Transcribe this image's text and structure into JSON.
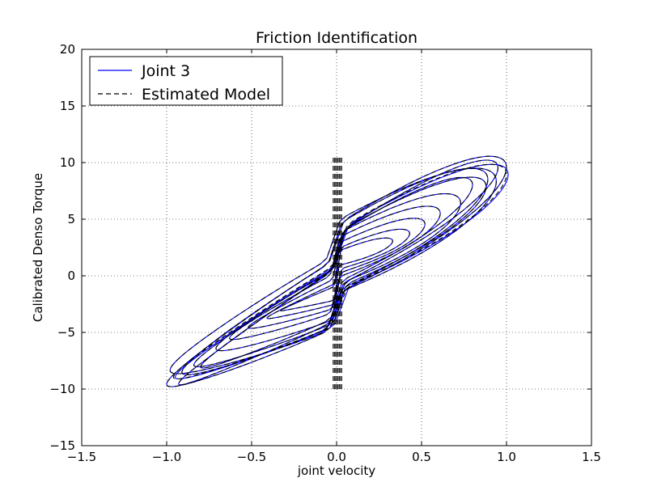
{
  "chart_data": {
    "type": "line",
    "title": "Friction Identification",
    "xlabel": "joint velocity",
    "ylabel": "Calibrated Denso Torque",
    "xlim": [
      -1.5,
      1.5
    ],
    "ylim": [
      -15,
      20
    ],
    "xticks": [
      -1.5,
      -1.0,
      -0.5,
      0.0,
      0.5,
      1.0,
      1.5
    ],
    "xtick_labels": [
      "−1.5",
      "−1.0",
      "−0.5",
      "0.0",
      "0.5",
      "1.0",
      "1.5"
    ],
    "yticks": [
      -15,
      -10,
      -5,
      0,
      5,
      10,
      15,
      20
    ],
    "ytick_labels": [
      "−15",
      "−10",
      "−5",
      "0",
      "5",
      "10",
      "15",
      "20"
    ],
    "grid": true,
    "legend_position": "top-left",
    "series": [
      {
        "name": "Joint 3",
        "style": "solid",
        "color": "#0000ff",
        "loops": [
          {
            "h": 0.22,
            "a": 8.5,
            "b": 5.5,
            "xshift": 0.0,
            "s": 1.0
          },
          {
            "h": 0.24,
            "a": 8.0,
            "b": 5.0,
            "xshift": 0.03,
            "s": 0.98
          },
          {
            "h": 0.2,
            "a": 7.5,
            "b": 6.0,
            "xshift": -0.02,
            "s": 0.96
          },
          {
            "h": 0.26,
            "a": 9.0,
            "b": 4.5,
            "xshift": 0.01,
            "s": 0.94
          },
          {
            "h": 0.18,
            "a": 8.2,
            "b": 5.8,
            "xshift": -0.01,
            "s": 0.9
          },
          {
            "h": 0.23,
            "a": 7.8,
            "b": 5.2,
            "xshift": 0.02,
            "s": 0.86
          },
          {
            "h": 0.21,
            "a": 8.6,
            "b": 4.8,
            "xshift": 0.0,
            "s": 0.8
          },
          {
            "h": 0.19,
            "a": 7.2,
            "b": 5.6,
            "xshift": 0.01,
            "s": 0.72
          },
          {
            "h": 0.16,
            "a": 6.8,
            "b": 5.0,
            "xshift": -0.01,
            "s": 0.62
          },
          {
            "h": 0.14,
            "a": 6.2,
            "b": 4.6,
            "xshift": 0.0,
            "s": 0.52
          },
          {
            "h": 0.12,
            "a": 5.6,
            "b": 4.0,
            "xshift": 0.01,
            "s": 0.42
          },
          {
            "h": 0.1,
            "a": 5.0,
            "b": 3.4,
            "xshift": 0.0,
            "s": 0.33
          }
        ]
      },
      {
        "name": "Estimated Model",
        "style": "dashed",
        "color": "#000000",
        "loops": [
          {
            "h": 0.15,
            "a": 8.5,
            "b": 5.5,
            "xshift": 0.0,
            "s": 1.0
          },
          {
            "h": 0.17,
            "a": 8.0,
            "b": 5.0,
            "xshift": 0.02,
            "s": 0.98
          },
          {
            "h": 0.13,
            "a": 7.5,
            "b": 6.0,
            "xshift": -0.02,
            "s": 0.96
          },
          {
            "h": 0.18,
            "a": 9.0,
            "b": 4.5,
            "xshift": 0.01,
            "s": 0.94
          },
          {
            "h": 0.12,
            "a": 8.2,
            "b": 5.8,
            "xshift": -0.01,
            "s": 0.9
          },
          {
            "h": 0.16,
            "a": 7.8,
            "b": 5.2,
            "xshift": 0.02,
            "s": 0.86
          },
          {
            "h": 0.14,
            "a": 8.6,
            "b": 4.8,
            "xshift": 0.0,
            "s": 0.8
          },
          {
            "h": 0.12,
            "a": 7.2,
            "b": 5.6,
            "xshift": 0.01,
            "s": 0.72
          },
          {
            "h": 0.1,
            "a": 6.8,
            "b": 5.0,
            "xshift": -0.01,
            "s": 0.62
          },
          {
            "h": 0.09,
            "a": 6.2,
            "b": 4.6,
            "xshift": 0.0,
            "s": 0.52
          },
          {
            "h": 0.08,
            "a": 5.6,
            "b": 4.0,
            "xshift": 0.01,
            "s": 0.42
          },
          {
            "h": 0.07,
            "a": 5.0,
            "b": 3.4,
            "xshift": 0.0,
            "s": 0.33
          }
        ],
        "vertical_band": {
          "x_min": -0.02,
          "x_max": 0.03,
          "y_min": -10,
          "y_max": 10.5
        }
      }
    ]
  }
}
